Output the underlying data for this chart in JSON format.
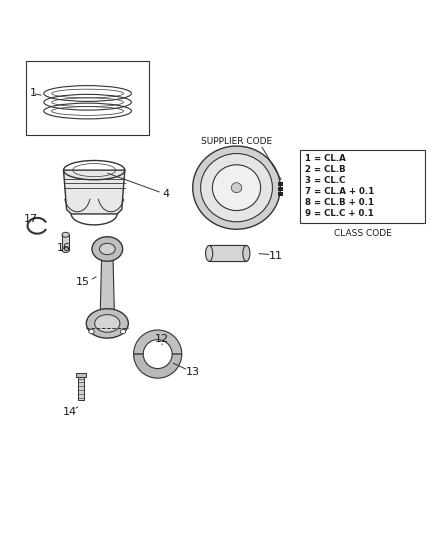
{
  "bg_color": "#ffffff",
  "line_color": "#333333",
  "text_color": "#1a1a1a",
  "class_box_lines": [
    "1 = CL.A",
    "2 = CL.B",
    "3 = CL.C",
    "7 = CL.A + 0.1",
    "8 = CL.B + 0.1",
    "9 = CL.C + 0.1"
  ],
  "class_code_label": "CLASS CODE",
  "supplier_code_label": "SUPPLIER CODE"
}
